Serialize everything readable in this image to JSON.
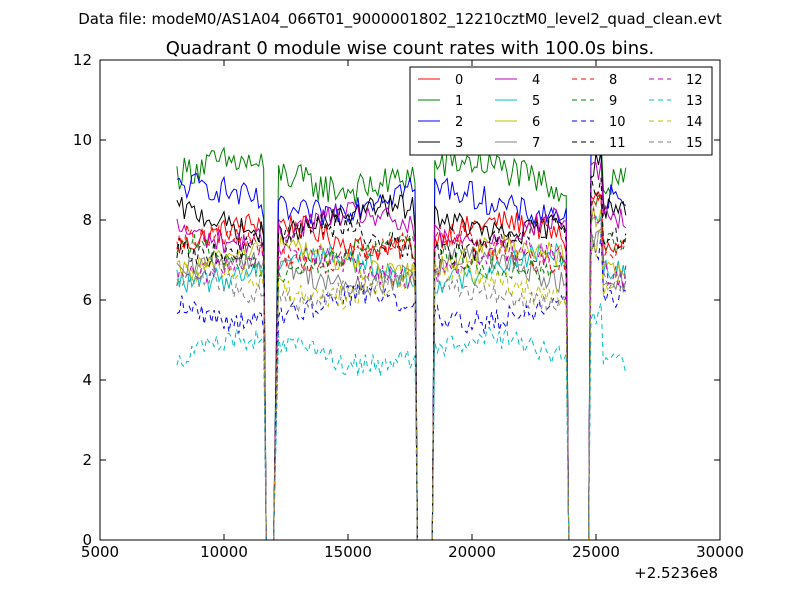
{
  "figure": {
    "suptitle": "Data file: modeM0/AS1A04_066T01_9000001802_12210cztM0_level2_quad_clean.evt"
  },
  "chart_data": {
    "type": "line",
    "title": "Quadrant 0 module wise count rates with 100.0s bins.",
    "xlabel": "",
    "ylabel": "",
    "x_offset_label": "+2.5236e8",
    "xlim": [
      5000,
      30000
    ],
    "ylim": [
      0,
      12
    ],
    "x_ticks": [
      5000,
      10000,
      15000,
      20000,
      25000,
      30000
    ],
    "y_ticks": [
      0,
      2,
      4,
      6,
      8,
      10,
      12
    ],
    "grid": false,
    "legend_placement": "top-right",
    "legend_columns": 4,
    "segments": [
      {
        "start": 8100,
        "end": 11600
      },
      {
        "start": 12200,
        "end": 17700
      },
      {
        "start": 18500,
        "end": 23800
      },
      {
        "start": 24800,
        "end": 26200
      }
    ],
    "gap_drop_points": [
      11700,
      11800,
      11900,
      12000,
      17800,
      17900,
      18000,
      18100,
      18200,
      18300,
      18400,
      23900,
      24000,
      24100,
      24200,
      24300,
      24400,
      24500,
      24600,
      24700
    ],
    "series": [
      {
        "name": "0",
        "color": "#ff0000",
        "dash": "solid",
        "mean": 7.6,
        "noise": 0.3
      },
      {
        "name": "1",
        "color": "#008000",
        "dash": "solid",
        "mean": 9.1,
        "noise": 0.4
      },
      {
        "name": "2",
        "color": "#0000ff",
        "dash": "solid",
        "mean": 8.5,
        "noise": 0.35
      },
      {
        "name": "3",
        "color": "#000000",
        "dash": "solid",
        "mean": 8.0,
        "noise": 0.3
      },
      {
        "name": "4",
        "color": "#bf00bf",
        "dash": "solid",
        "mean": 7.8,
        "noise": 0.3
      },
      {
        "name": "5",
        "color": "#00bfbf",
        "dash": "solid",
        "mean": 6.8,
        "noise": 0.3
      },
      {
        "name": "6",
        "color": "#bfbf00",
        "dash": "solid",
        "mean": 7.0,
        "noise": 0.3
      },
      {
        "name": "7",
        "color": "#808080",
        "dash": "solid",
        "mean": 6.7,
        "noise": 0.3
      },
      {
        "name": "8",
        "color": "#ff0000",
        "dash": "dashed",
        "mean": 7.3,
        "noise": 0.3
      },
      {
        "name": "9",
        "color": "#008000",
        "dash": "dashed",
        "mean": 7.1,
        "noise": 0.3
      },
      {
        "name": "10",
        "color": "#0000ff",
        "dash": "dashed",
        "mean": 5.8,
        "noise": 0.3
      },
      {
        "name": "11",
        "color": "#000000",
        "dash": "dashed",
        "mean": 7.5,
        "noise": 0.3
      },
      {
        "name": "12",
        "color": "#bf00bf",
        "dash": "dashed",
        "mean": 6.9,
        "noise": 0.3
      },
      {
        "name": "13",
        "color": "#00bfbf",
        "dash": "dashed",
        "mean": 4.7,
        "noise": 0.3
      },
      {
        "name": "14",
        "color": "#bfbf00",
        "dash": "dashed",
        "mean": 6.4,
        "noise": 0.3
      },
      {
        "name": "15",
        "color": "#808080",
        "dash": "dashed",
        "mean": 6.3,
        "noise": 0.3
      }
    ]
  }
}
